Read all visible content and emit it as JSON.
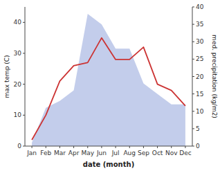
{
  "chart_data": {
    "type": "line",
    "categories": [
      "Jan",
      "Feb",
      "Mar",
      "Apr",
      "May",
      "Jun",
      "Jul",
      "Aug",
      "Sep",
      "Oct",
      "Nov",
      "Dec"
    ],
    "series": [
      {
        "type": "area",
        "axis": "y2",
        "color": "#b8c4e8",
        "values": [
          1,
          11,
          13,
          16,
          38,
          35,
          28,
          28,
          18,
          15,
          12,
          12
        ]
      },
      {
        "type": "line",
        "color": "#cc3333",
        "values": [
          2,
          10,
          21,
          26,
          27,
          35,
          28,
          28,
          32,
          20,
          18,
          13
        ]
      }
    ],
    "xlabel": "date (month)",
    "ylabel": "max temp (C)",
    "y2label": "med. precipitation (kg/m2)",
    "ylim": [
      0,
      45
    ],
    "yticks": [
      0,
      10,
      20,
      30,
      40
    ],
    "y2lim": [
      0,
      40
    ],
    "y2ticks": [
      0,
      5,
      10,
      15,
      20,
      25,
      30,
      35,
      40
    ]
  }
}
